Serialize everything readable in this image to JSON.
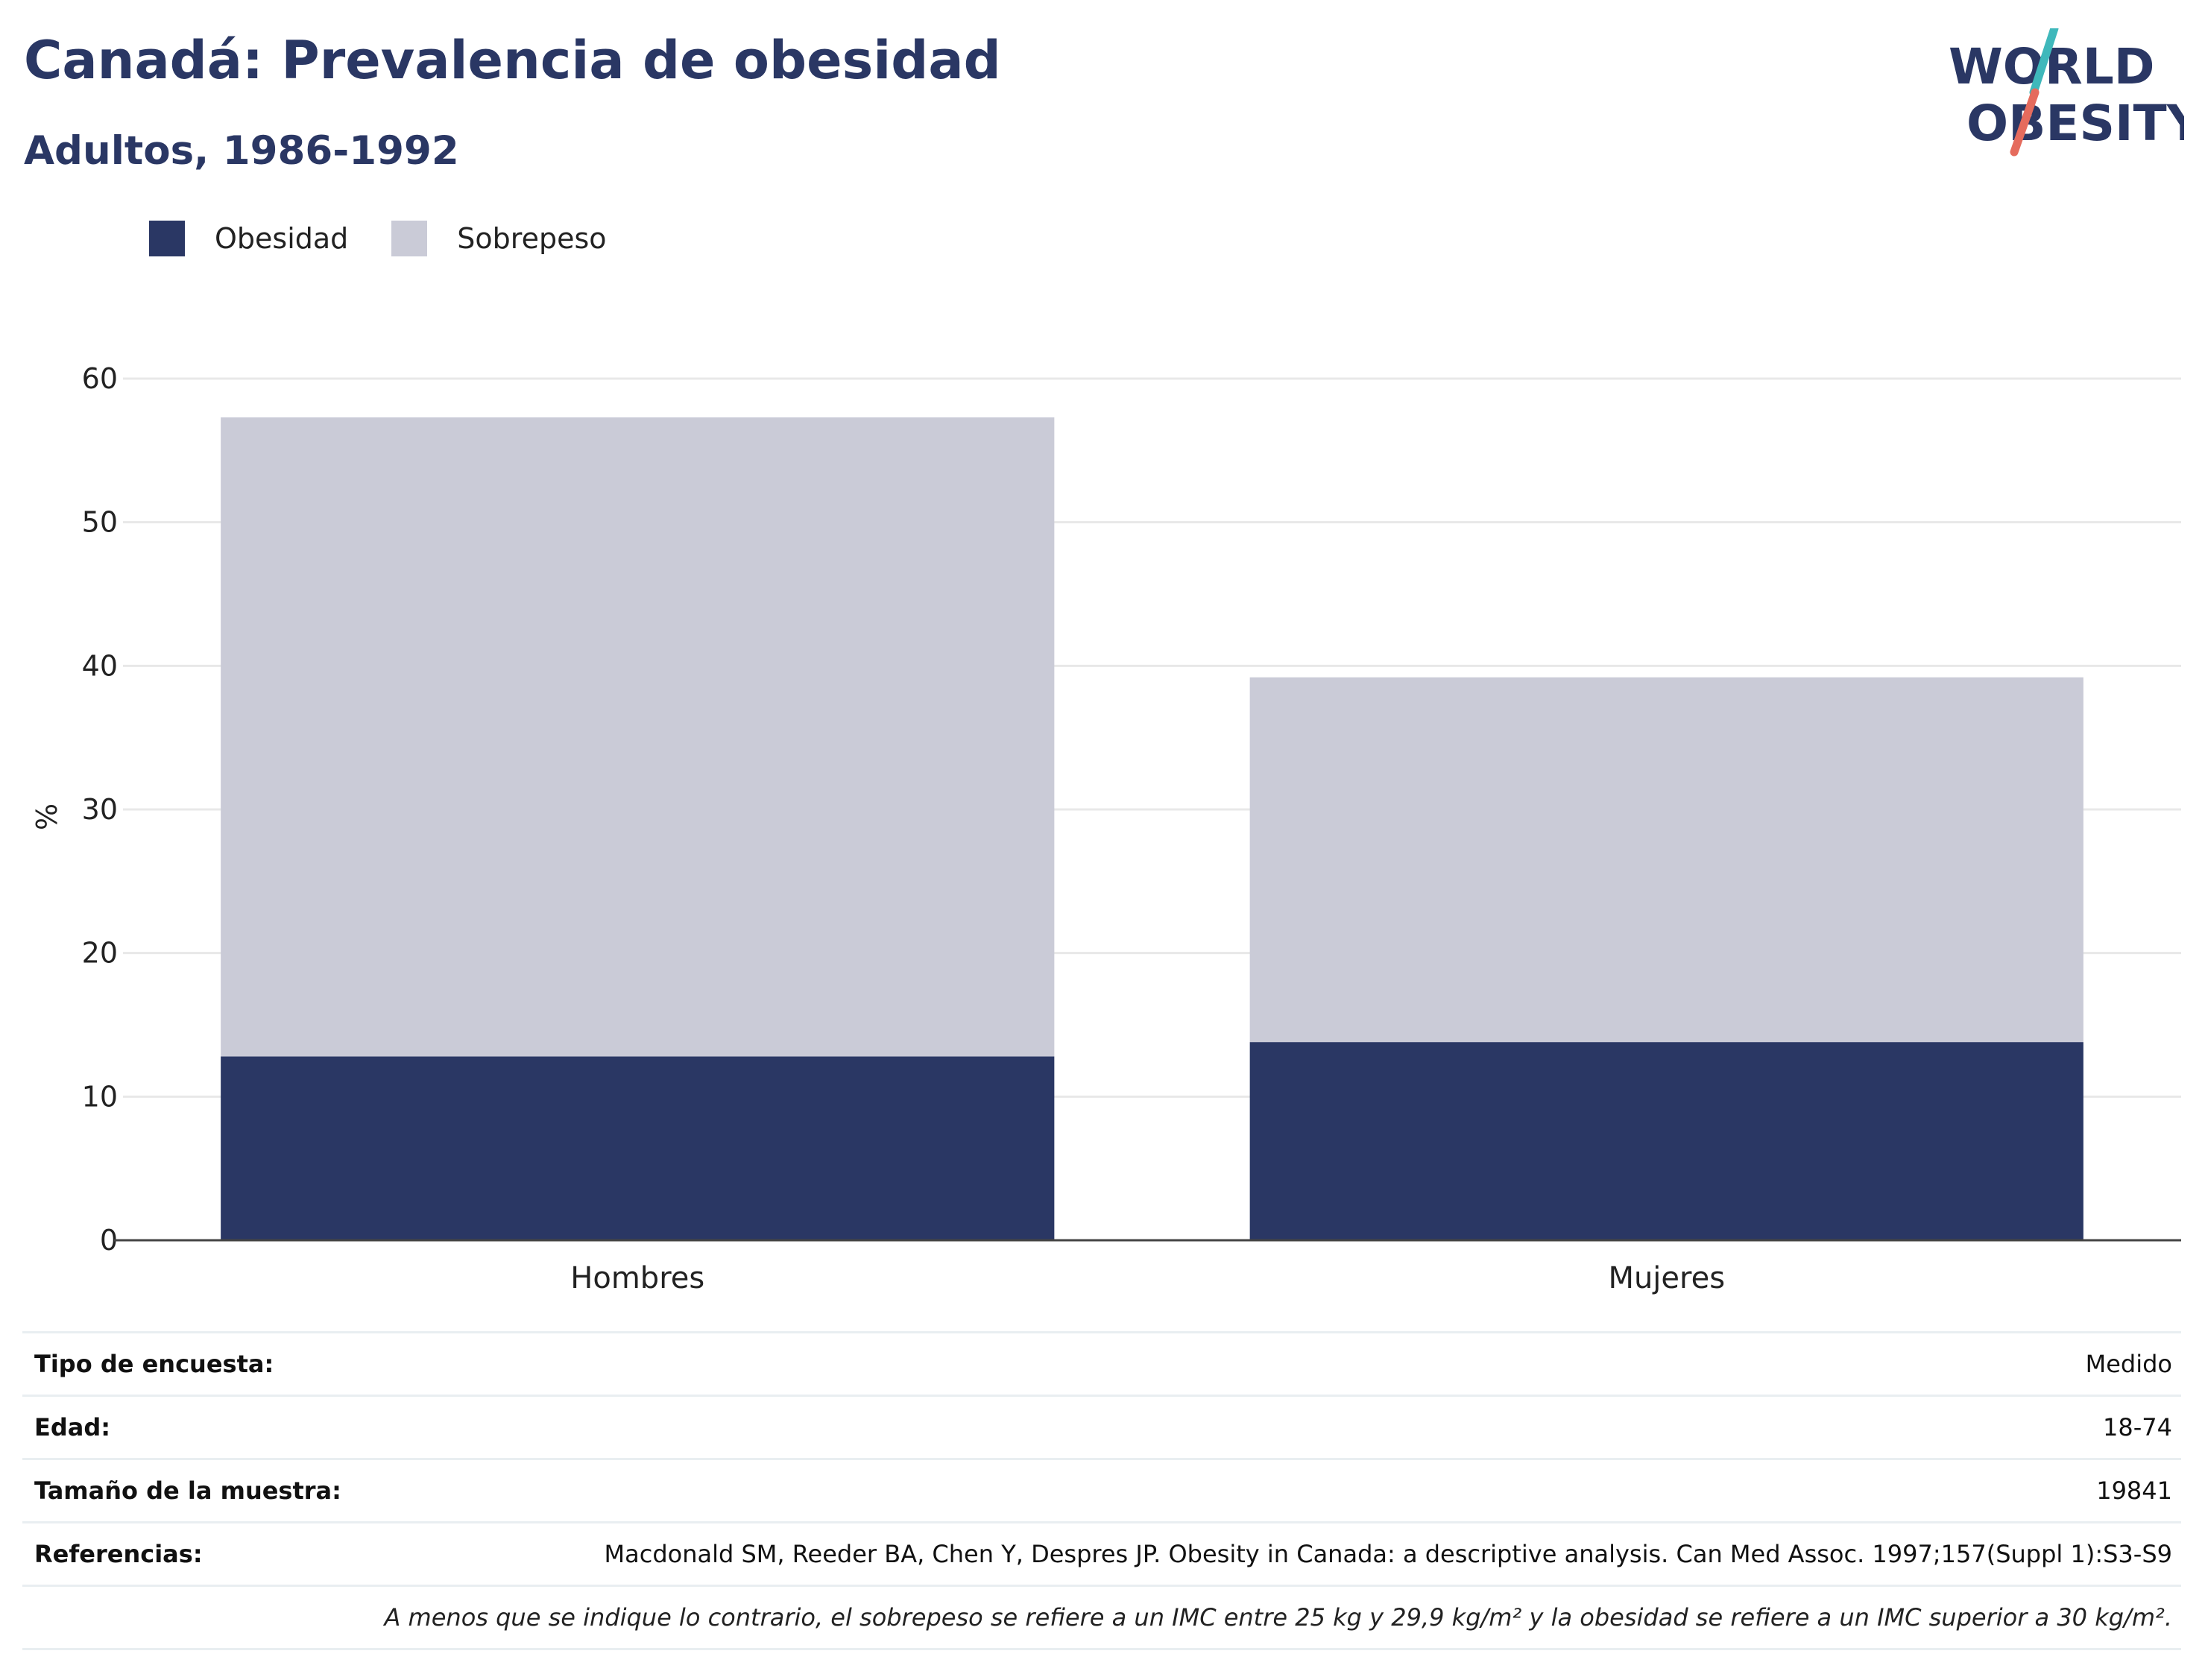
{
  "header": {
    "title": "Canadá: Prevalencia de obesidad",
    "subtitle": "Adultos, 1986-1992"
  },
  "logo": {
    "line1": "WORLD",
    "line2": "OBESITY"
  },
  "colors": {
    "obesidad": "#2a3764",
    "sobrepeso": "#cacbd7",
    "title": "#2a3764",
    "grid": "#e8e8e8",
    "axis": "#444444"
  },
  "chart_data": {
    "type": "bar",
    "stacked": true,
    "categories": [
      "Hombres",
      "Mujeres"
    ],
    "series": [
      {
        "name": "Obesidad",
        "values": [
          12.8,
          13.8
        ]
      },
      {
        "name": "Sobrepeso",
        "values": [
          44.5,
          25.4
        ]
      }
    ],
    "ylabel": "%",
    "ylim": [
      0,
      60
    ],
    "yticks": [
      0,
      10,
      20,
      30,
      40,
      50,
      60
    ],
    "grid": true,
    "legend_position": "top-left"
  },
  "meta": {
    "rows": [
      {
        "key": "Tipo de encuesta:",
        "value": "Medido"
      },
      {
        "key": "Edad:",
        "value": "18-74"
      },
      {
        "key": "Tamaño de la muestra:",
        "value": "19841"
      },
      {
        "key": "Referencias:",
        "value": "Macdonald SM, Reeder BA, Chen Y, Despres JP. Obesity in Canada: a descriptive analysis. Can Med Assoc. 1997;157(Suppl 1):S3-S9"
      }
    ],
    "note": "A menos que se indique lo contrario, el sobrepeso se refiere a un IMC entre 25 kg y 29,9 kg/m² y la obesidad se refiere a un IMC superior a 30 kg/m²."
  }
}
